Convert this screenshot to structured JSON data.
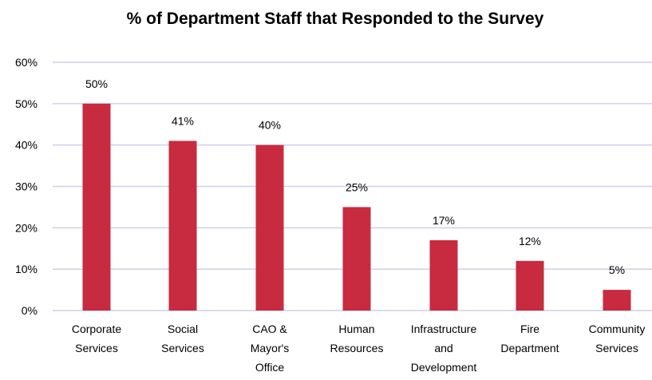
{
  "chart_data": {
    "type": "bar",
    "title": "% of Department Staff that Responded to the Survey",
    "xlabel": "",
    "ylabel": "",
    "categories": [
      [
        "Corporate",
        "Services"
      ],
      [
        "Social",
        "Services"
      ],
      [
        "CAO &",
        "Mayor's",
        "Office"
      ],
      [
        "Human",
        "Resources"
      ],
      [
        "Infrastructure",
        "and",
        "Development"
      ],
      [
        "Fire",
        "Department"
      ],
      [
        "Community",
        "Services"
      ]
    ],
    "values": [
      50,
      41,
      40,
      25,
      17,
      12,
      5
    ],
    "data_labels": [
      "50%",
      "41%",
      "40%",
      "25%",
      "17%",
      "12%",
      "5%"
    ],
    "yticks": [
      "0%",
      "10%",
      "20%",
      "30%",
      "40%",
      "50%",
      "60%"
    ],
    "ylim": [
      0,
      60
    ],
    "grid": true,
    "legend": false,
    "colors": {
      "bar": "#C82A40",
      "grid": "#CFCFEA",
      "text": "#000000"
    }
  }
}
